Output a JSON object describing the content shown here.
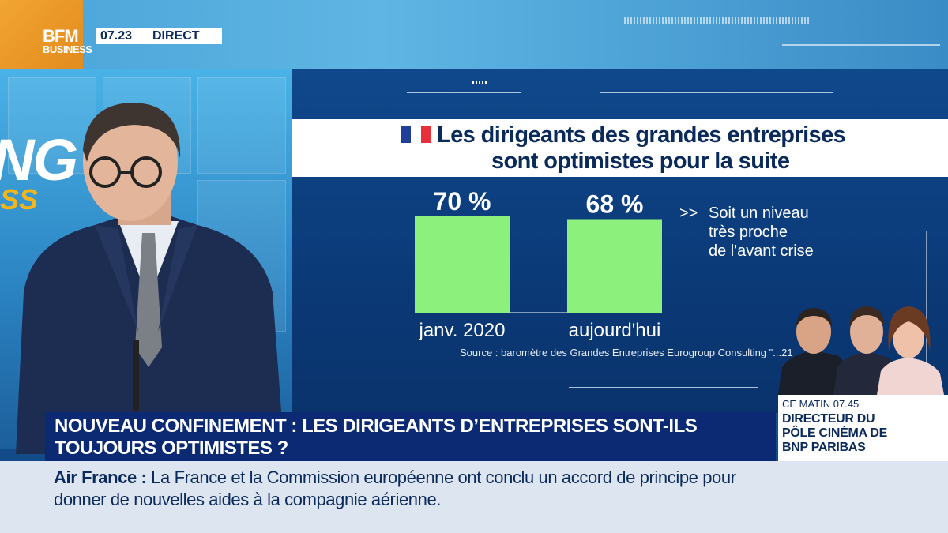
{
  "channel": {
    "logo_top": "BFM",
    "logo_bottom": "BUSINESS",
    "time": "07.23",
    "live": "DIRECT"
  },
  "background_text": {
    "word": "NG",
    "word2": "SS"
  },
  "graphic": {
    "title_line1": "Les dirigeants des grandes entreprises",
    "title_line2": "sont optimistes pour la suite",
    "flag_colors": [
      "#1f3f99",
      "#ffffff",
      "#e8303a"
    ],
    "note_arrow": ">>",
    "note_lines": [
      "Soit un niveau",
      "très proche",
      "de l'avant crise"
    ],
    "source": "Source : baromètre des Grandes Entreprises Eurogroup Consulting \"...21"
  },
  "chart_data": {
    "type": "bar",
    "categories": [
      "janv. 2020",
      "aujourd'hui"
    ],
    "values": [
      70,
      68
    ],
    "data_labels": [
      "70 %",
      "68 %"
    ],
    "title": "Les dirigeants des grandes entreprises sont optimistes pour la suite",
    "xlabel": "",
    "ylabel": "",
    "ylim": [
      0,
      70
    ],
    "bar_color": "#8cf07c",
    "grid": false
  },
  "headline": {
    "line1": "NOUVEAU CONFINEMENT : LES DIRIGEANTS D’ENTREPRISES SONT-ILS",
    "line2": "TOUJOURS OPTIMISTES ?"
  },
  "guest_panel": {
    "time_label": "CE MATIN 07.45",
    "lines": [
      "DIRECTEUR DU",
      "PÔLE CINÉMA DE",
      "BNP PARIBAS"
    ]
  },
  "ticker": {
    "source": "Air France :",
    "line1": " La France et la Commission européenne ont conclu un accord de principe pour",
    "line2": "donner de nouvelles aides à la compagnie aérienne."
  },
  "colors": {
    "navy": "#0b2a73",
    "screen_blue": "#0b3a78",
    "bar_green": "#8cf07c"
  }
}
